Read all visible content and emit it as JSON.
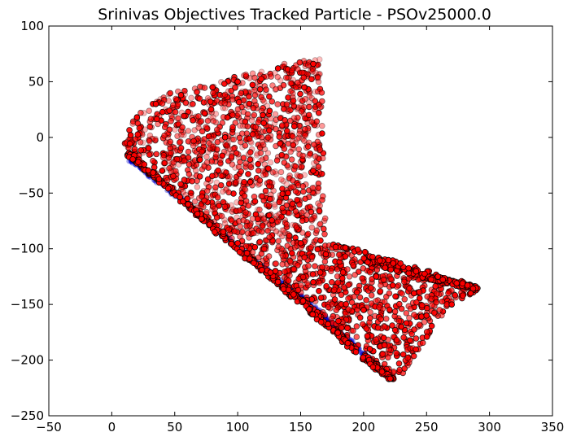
{
  "chart_data": {
    "type": "scatter",
    "title": "Srinivas Objectives Tracked Particle - PSOv25000.0",
    "xlabel": "",
    "ylabel": "",
    "xlim": [
      -50,
      350
    ],
    "ylim": [
      -250,
      100
    ],
    "x_ticks": [
      -50,
      0,
      50,
      100,
      150,
      200,
      250,
      300,
      350
    ],
    "y_ticks": [
      -250,
      -200,
      -150,
      -100,
      -50,
      0,
      50,
      100
    ],
    "grid": false,
    "legend": "none",
    "series": [
      {
        "color": "#ff0000",
        "edge_color": "#000000",
        "region_outline": [
          [
            165,
            72
          ],
          [
            150,
            68
          ],
          [
            130,
            65
          ],
          [
            100,
            55
          ],
          [
            75,
            48
          ],
          [
            50,
            42
          ],
          [
            30,
            30
          ],
          [
            16,
            16
          ],
          [
            10,
            5
          ],
          [
            10,
            -5
          ],
          [
            15,
            -15
          ],
          [
            25,
            -25
          ],
          [
            60,
            -62
          ],
          [
            100,
            -103
          ],
          [
            150,
            -145
          ],
          [
            190,
            -183
          ],
          [
            210,
            -207
          ],
          [
            222,
            -218
          ],
          [
            232,
            -212
          ],
          [
            243,
            -193
          ],
          [
            258,
            -165
          ],
          [
            272,
            -148
          ],
          [
            292,
            -137
          ],
          [
            280,
            -132
          ],
          [
            260,
            -127
          ],
          [
            230,
            -118
          ],
          [
            200,
            -110
          ],
          [
            175,
            -95
          ],
          [
            172,
            -90
          ],
          [
            170,
            -80
          ],
          [
            168,
            -40
          ],
          [
            168,
            0
          ],
          [
            167,
            40
          ]
        ],
        "dense_edge": [
          [
            12,
            -14
          ],
          [
            50,
            -50
          ],
          [
            100,
            -100
          ],
          [
            150,
            -147
          ],
          [
            200,
            -197
          ],
          [
            222,
            -217
          ],
          [
            200,
            -110
          ],
          [
            250,
            -125
          ],
          [
            290,
            -136
          ],
          [
            175,
            -95
          ]
        ],
        "sample_points": [
          [
            15,
            2
          ],
          [
            20,
            18
          ],
          [
            35,
            30
          ],
          [
            55,
            38
          ],
          [
            80,
            45
          ],
          [
            100,
            50
          ],
          [
            132,
            62
          ],
          [
            160,
            66
          ],
          [
            120,
            20
          ],
          [
            145,
            10
          ],
          [
            160,
            -30
          ],
          [
            140,
            -50
          ],
          [
            110,
            -40
          ],
          [
            70,
            -20
          ],
          [
            90,
            0
          ],
          [
            125,
            -70
          ],
          [
            150,
            -95
          ],
          [
            170,
            -105
          ],
          [
            210,
            -125
          ],
          [
            240,
            -140
          ],
          [
            270,
            -150
          ],
          [
            285,
            -140
          ],
          [
            230,
            -170
          ],
          [
            205,
            -190
          ],
          [
            180,
            -165
          ],
          [
            130,
            -120
          ],
          [
            100,
            -95
          ],
          [
            60,
            -55
          ],
          [
            40,
            -30
          ],
          [
            200,
            -155
          ],
          [
            160,
            -130
          ],
          [
            250,
            -160
          ]
        ]
      },
      {
        "color": "#0000cc",
        "note_points": [
          [
            15,
            -20
          ],
          [
            60,
            -60
          ],
          [
            110,
            -108
          ],
          [
            160,
            -152
          ],
          [
            205,
            -200
          ]
        ]
      }
    ]
  }
}
